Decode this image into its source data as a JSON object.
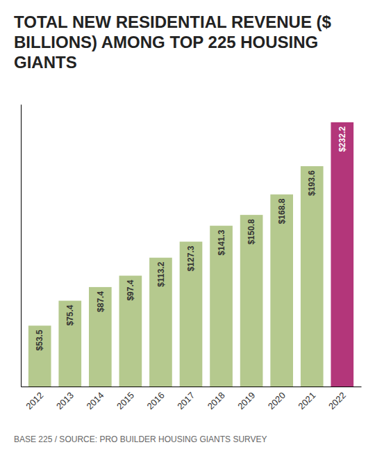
{
  "chart_data": {
    "type": "bar",
    "title": "TOTAL NEW RESIDENTIAL REVENUE ($ BILLIONS) AMONG TOP 225 HOUSING GIANTS",
    "categories": [
      "2012",
      "2013",
      "2014",
      "2015",
      "2016",
      "2017",
      "2018",
      "2019",
      "2020",
      "2021",
      "2022"
    ],
    "values": [
      53.5,
      75.4,
      87.4,
      97.4,
      113.2,
      127.3,
      141.3,
      150.8,
      168.8,
      193.6,
      232.2
    ],
    "value_labels": [
      "$53.5",
      "$75.4",
      "$87.4",
      "$97.4",
      "$113.2",
      "$127.3",
      "$141.3",
      "$150.8",
      "$168.8",
      "$193.6",
      "$232.2"
    ],
    "colors": [
      "#b5c98e",
      "#b5c98e",
      "#b5c98e",
      "#b5c98e",
      "#b5c98e",
      "#b5c98e",
      "#b5c98e",
      "#b5c98e",
      "#b5c98e",
      "#b5c98e",
      "#b3367a"
    ],
    "ylim": [
      0,
      248
    ],
    "data_labels": true,
    "tick_labels": "x",
    "grid": false,
    "annotations": [
      "BASE 225 / SOURCE: PRO BUILDER HOUSING GIANTS SURVEY"
    ]
  }
}
